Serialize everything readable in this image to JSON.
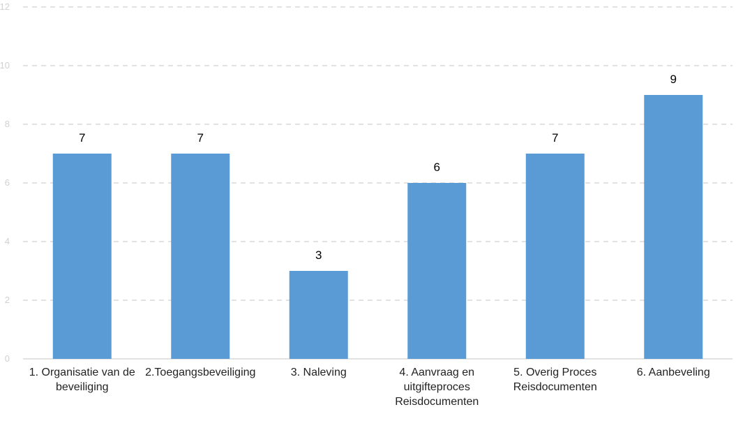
{
  "chart_data": {
    "type": "bar",
    "categories": [
      "1. Organisatie van de beveiliging",
      "2.Toegangsbeveiliging",
      "3. Naleving",
      "4. Aanvraag en uitgifteproces Reisdocumenten",
      "5. Overig Proces Reisdocumenten",
      "6. Aanbeveling"
    ],
    "values": [
      7,
      7,
      3,
      6,
      7,
      9
    ],
    "data_labels": [
      "7",
      "7",
      "3",
      "6",
      "7",
      "9"
    ],
    "yticks": [
      "0",
      "2",
      "4",
      "6",
      "8",
      "10",
      "12"
    ],
    "ylim": [
      0,
      12
    ],
    "grid": true,
    "bar_color": "#5b9bd5",
    "grid_color": "#d9d9d9",
    "axis_color": "#d9d9d9",
    "title": "",
    "xlabel": "",
    "ylabel": ""
  }
}
